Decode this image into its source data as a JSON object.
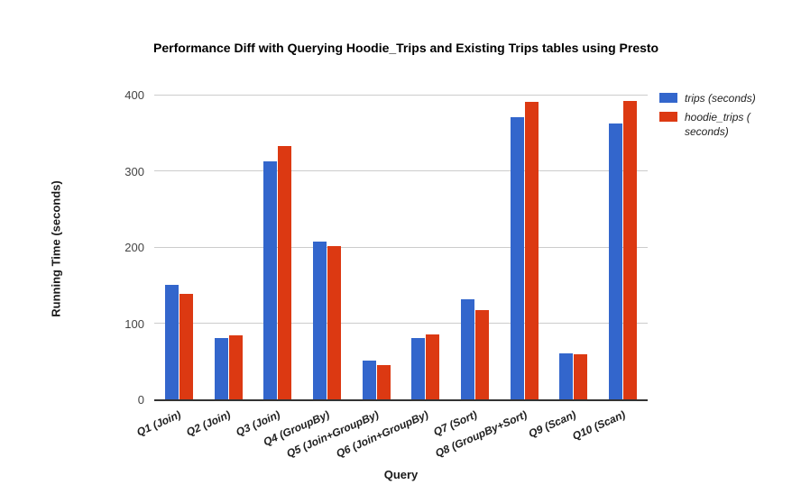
{
  "chart": {
    "title": "Performance Diff with Querying Hoodie_Trips and Existing Trips tables using Presto",
    "x_axis_title": "Query",
    "y_axis_title": "Running Time (seconds)"
  },
  "legend": {
    "items": [
      {
        "key": "trips",
        "label": "trips (seconds)",
        "color": "#3366CC"
      },
      {
        "key": "hoodie-trips",
        "label": "hoodie_trips ( seconds)",
        "color": "#DC3912"
      }
    ]
  },
  "chart_data": {
    "type": "bar",
    "title": "Performance Diff with Querying Hoodie_Trips and Existing Trips tables using Presto",
    "xlabel": "Query",
    "ylabel": "Running Time (seconds)",
    "categories": [
      "Q1 (Join)",
      "Q2 (Join)",
      "Q3 (Join)",
      "Q4 (GroupBy)",
      "Q5 (Join+GroupBy)",
      "Q6 (Join+GroupBy)",
      "Q7 (Sort)",
      "Q8 (GroupBy+Sort)",
      "Q9 (Scan)",
      "Q10 (Scan)"
    ],
    "series": [
      {
        "name": "trips (seconds)",
        "key": "trips",
        "color": "#3366CC",
        "values": [
          150,
          81,
          313,
          207,
          51,
          81,
          131,
          370,
          60,
          362
        ]
      },
      {
        "name": "hoodie_trips (seconds)",
        "key": "hoodie-trips",
        "color": "#DC3912",
        "values": [
          138,
          84,
          332,
          201,
          45,
          85,
          117,
          390,
          59,
          392
        ]
      }
    ],
    "ylim": [
      0,
      400
    ],
    "yticks": [
      0,
      100,
      200,
      300,
      400
    ],
    "grid": true,
    "legend_position": "right",
    "colors": {
      "grid": "#cccccc",
      "baseline": "#333333",
      "tick_label": "#444444",
      "axis_text": "#1f1f1f"
    }
  }
}
